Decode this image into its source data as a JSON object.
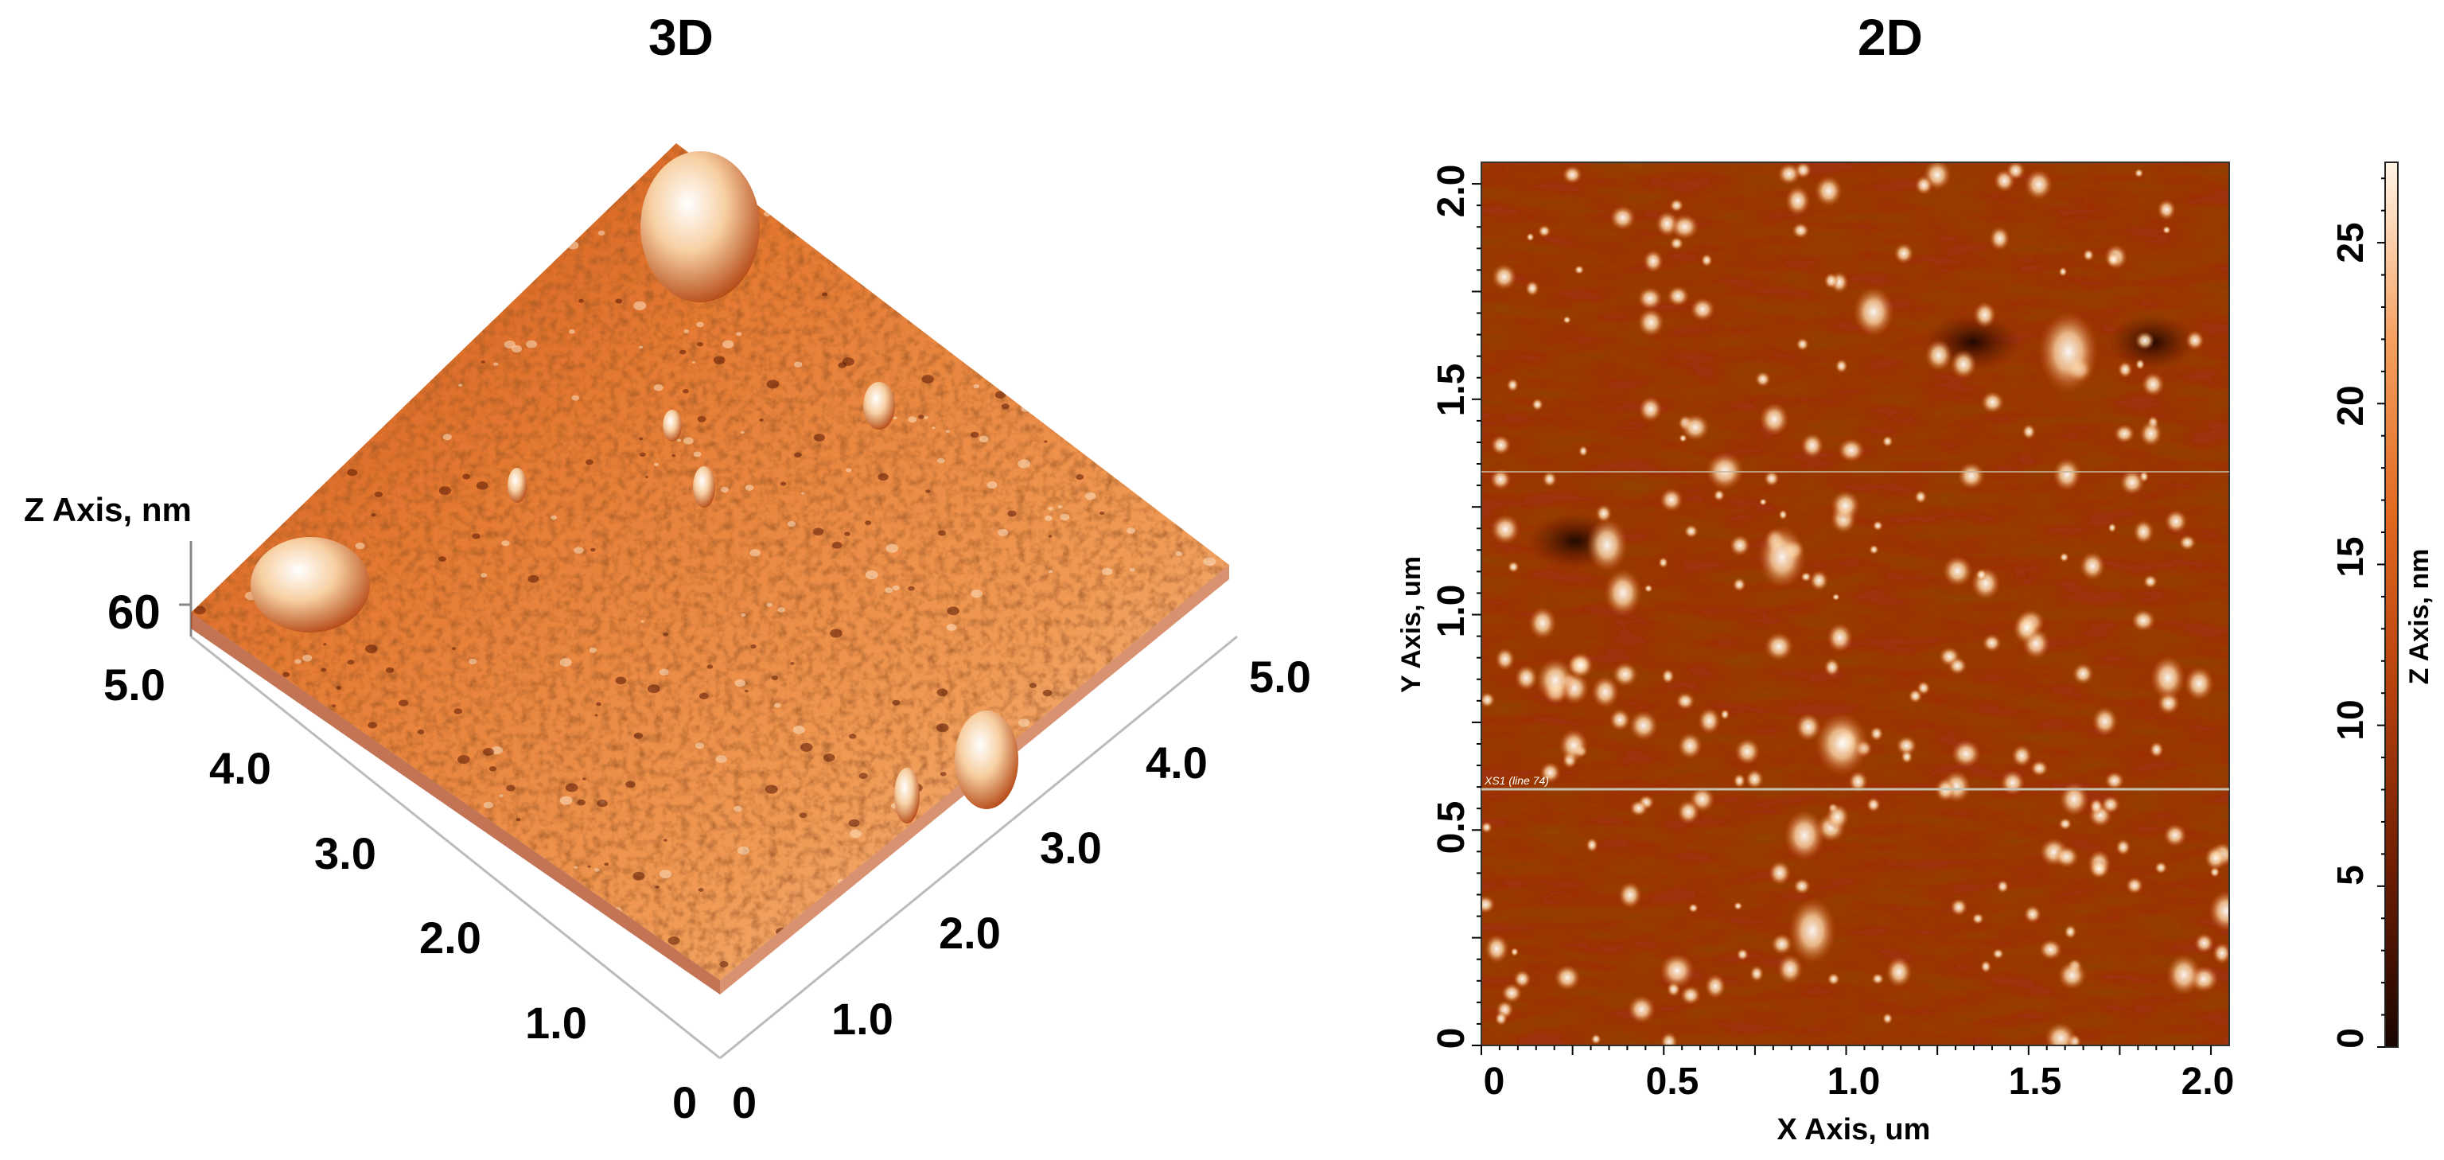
{
  "chart_data": [
    {
      "type": "surface-3d",
      "title": "3D",
      "z_label": "Z Axis, nm",
      "z_ticks": [
        "60"
      ],
      "left_axis_ticks": [
        "0",
        "1.0",
        "2.0",
        "3.0",
        "4.0",
        "5.0"
      ],
      "right_axis_ticks": [
        "0",
        "1.0",
        "2.0",
        "3.0",
        "4.0",
        "5.0"
      ],
      "colormap": [
        "#1a0500",
        "#6e1d03",
        "#b4400d",
        "#e0691f",
        "#f5a060",
        "#fff4e6"
      ]
    },
    {
      "type": "heatmap",
      "title": "2D",
      "xlabel": "X Axis, um",
      "ylabel": "Y Axis, um",
      "x_ticks": [
        "0",
        "0.5",
        "1.0",
        "1.5",
        "2.0"
      ],
      "y_ticks": [
        "0",
        "0.5",
        "1.0",
        "1.5",
        "2.0"
      ],
      "xlim": [
        0,
        2.05
      ],
      "ylim": [
        0,
        2.05
      ],
      "annotation": "XS1 (line 74)",
      "colorbar": {
        "label": "Z Axis, nm",
        "ticks": [
          "0",
          "5",
          "10",
          "15",
          "20",
          "25"
        ],
        "range": [
          0,
          27.5
        ]
      },
      "colormap": [
        "#1a0500",
        "#6e1d03",
        "#b4400d",
        "#e0691f",
        "#f5a060",
        "#fff4e6"
      ]
    }
  ]
}
